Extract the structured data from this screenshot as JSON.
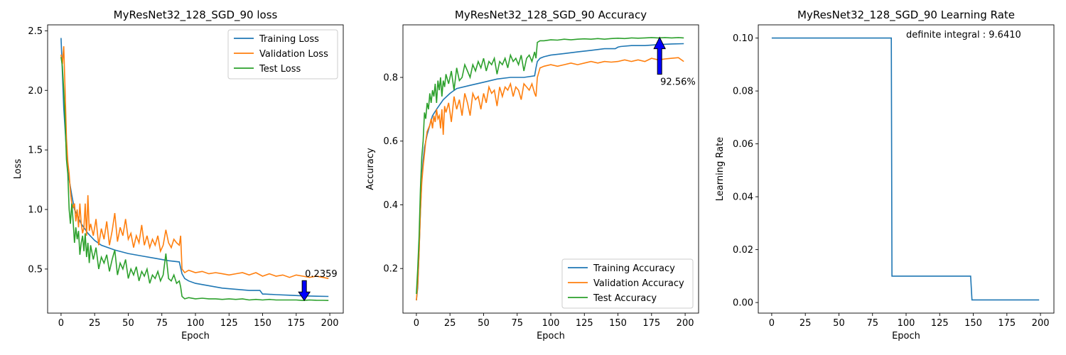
{
  "chart_data": [
    {
      "id": "loss",
      "type": "line",
      "title": "MyResNet32_128_SGD_90 loss",
      "xlabel": "Epoch",
      "ylabel": "Loss",
      "xlim": [
        -10,
        210
      ],
      "ylim": [
        0.13,
        2.55
      ],
      "xticks": [
        0,
        25,
        50,
        75,
        100,
        125,
        150,
        175,
        200
      ],
      "yticks": [
        0.5,
        1.0,
        1.5,
        2.0,
        2.5
      ],
      "ytick_labels": [
        "0.5",
        "1.0",
        "1.5",
        "2.0",
        "2.5"
      ],
      "legend": "top-right",
      "series": [
        {
          "name": "Training Loss",
          "color": "#1f77b4",
          "x": [
            0,
            2,
            5,
            8,
            10,
            15,
            20,
            25,
            30,
            40,
            50,
            60,
            70,
            80,
            88,
            90,
            92,
            95,
            100,
            110,
            120,
            130,
            140,
            148,
            150,
            152,
            160,
            170,
            180,
            190,
            199
          ],
          "y": [
            2.44,
            1.85,
            1.32,
            1.12,
            1.0,
            0.88,
            0.8,
            0.74,
            0.7,
            0.66,
            0.63,
            0.61,
            0.59,
            0.57,
            0.56,
            0.46,
            0.42,
            0.4,
            0.38,
            0.36,
            0.34,
            0.33,
            0.32,
            0.32,
            0.29,
            0.29,
            0.285,
            0.28,
            0.275,
            0.272,
            0.27
          ]
        },
        {
          "name": "Validation Loss",
          "color": "#ff7f0e",
          "x": [
            0,
            1,
            2,
            3,
            4,
            5,
            6,
            7,
            8,
            9,
            10,
            11,
            12,
            13,
            14,
            15,
            16,
            17,
            18,
            19,
            20,
            21,
            22,
            24,
            26,
            28,
            30,
            32,
            34,
            36,
            38,
            40,
            42,
            44,
            46,
            48,
            50,
            52,
            54,
            56,
            58,
            60,
            62,
            64,
            66,
            68,
            70,
            72,
            74,
            76,
            78,
            80,
            82,
            84,
            86,
            88,
            89,
            90,
            92,
            95,
            100,
            105,
            110,
            115,
            120,
            125,
            130,
            135,
            140,
            145,
            150,
            155,
            160,
            165,
            170,
            175,
            180,
            185,
            190,
            195,
            199
          ],
          "y": [
            2.3,
            2.22,
            2.37,
            2.0,
            1.6,
            1.4,
            1.3,
            1.15,
            1.05,
            1.02,
            1.05,
            0.9,
            1.0,
            0.85,
            1.05,
            0.88,
            0.8,
            0.85,
            1.05,
            0.78,
            1.12,
            0.82,
            0.88,
            0.78,
            0.92,
            0.7,
            0.84,
            0.75,
            0.9,
            0.7,
            0.82,
            0.97,
            0.73,
            0.85,
            0.78,
            0.92,
            0.75,
            0.8,
            0.68,
            0.78,
            0.72,
            0.87,
            0.7,
            0.78,
            0.68,
            0.75,
            0.7,
            0.78,
            0.65,
            0.7,
            0.83,
            0.72,
            0.68,
            0.75,
            0.72,
            0.7,
            0.78,
            0.5,
            0.47,
            0.49,
            0.47,
            0.48,
            0.46,
            0.47,
            0.46,
            0.45,
            0.46,
            0.47,
            0.45,
            0.47,
            0.44,
            0.46,
            0.44,
            0.45,
            0.43,
            0.45,
            0.44,
            0.43,
            0.44,
            0.43,
            0.42
          ]
        },
        {
          "name": "Test Loss",
          "color": "#2ca02c",
          "x": [
            0,
            1,
            2,
            3,
            4,
            5,
            6,
            7,
            8,
            9,
            10,
            11,
            12,
            13,
            14,
            15,
            16,
            17,
            18,
            19,
            20,
            21,
            22,
            24,
            26,
            28,
            30,
            32,
            34,
            36,
            38,
            40,
            42,
            44,
            46,
            48,
            50,
            52,
            54,
            56,
            58,
            60,
            62,
            64,
            66,
            68,
            70,
            72,
            74,
            76,
            78,
            80,
            82,
            84,
            86,
            88,
            89,
            90,
            92,
            95,
            100,
            105,
            110,
            115,
            120,
            125,
            130,
            135,
            140,
            145,
            150,
            155,
            160,
            165,
            170,
            175,
            180,
            185,
            190,
            195,
            199
          ],
          "y": [
            2.28,
            2.2,
            2.0,
            1.75,
            1.42,
            1.3,
            1.0,
            0.88,
            1.05,
            0.9,
            0.72,
            0.85,
            0.75,
            0.82,
            0.62,
            0.72,
            0.78,
            0.65,
            0.8,
            0.6,
            0.72,
            0.55,
            0.7,
            0.58,
            0.68,
            0.5,
            0.6,
            0.55,
            0.62,
            0.48,
            0.58,
            0.66,
            0.45,
            0.55,
            0.5,
            0.58,
            0.42,
            0.5,
            0.45,
            0.52,
            0.4,
            0.48,
            0.44,
            0.5,
            0.38,
            0.45,
            0.42,
            0.48,
            0.4,
            0.45,
            0.63,
            0.42,
            0.4,
            0.45,
            0.38,
            0.4,
            0.35,
            0.27,
            0.25,
            0.26,
            0.25,
            0.255,
            0.25,
            0.25,
            0.245,
            0.25,
            0.245,
            0.25,
            0.24,
            0.245,
            0.24,
            0.245,
            0.24,
            0.24,
            0.24,
            0.24,
            0.236,
            0.24,
            0.238,
            0.237,
            0.236
          ]
        }
      ],
      "annotations": [
        {
          "text": "0.2359",
          "x": 181,
          "y": 0.2359,
          "arrow": "down",
          "color": "#0000ff"
        }
      ]
    },
    {
      "id": "accuracy",
      "type": "line",
      "title": "MyResNet32_128_SGD_90 Accuracy",
      "xlabel": "Epoch",
      "ylabel": "Accuracy",
      "xlim": [
        -10,
        210
      ],
      "ylim": [
        0.06,
        0.965
      ],
      "xticks": [
        0,
        25,
        50,
        75,
        100,
        125,
        150,
        175,
        200
      ],
      "yticks": [
        0.2,
        0.4,
        0.6,
        0.8
      ],
      "ytick_labels": [
        "0.2",
        "0.4",
        "0.6",
        "0.8"
      ],
      "legend": "bottom-right",
      "series": [
        {
          "name": "Training Accuracy",
          "color": "#1f77b4",
          "x": [
            0,
            1,
            2,
            3,
            4,
            5,
            6,
            8,
            10,
            12,
            15,
            20,
            25,
            30,
            40,
            50,
            60,
            70,
            80,
            88,
            89,
            90,
            92,
            95,
            100,
            110,
            120,
            130,
            140,
            148,
            150,
            152,
            160,
            170,
            180,
            190,
            199
          ],
          "y": [
            0.1,
            0.14,
            0.25,
            0.38,
            0.48,
            0.54,
            0.58,
            0.62,
            0.65,
            0.68,
            0.7,
            0.73,
            0.75,
            0.765,
            0.775,
            0.785,
            0.795,
            0.8,
            0.8,
            0.805,
            0.83,
            0.85,
            0.86,
            0.865,
            0.87,
            0.875,
            0.88,
            0.885,
            0.89,
            0.89,
            0.895,
            0.897,
            0.9,
            0.9,
            0.903,
            0.905,
            0.906
          ]
        },
        {
          "name": "Validation Accuracy",
          "color": "#ff7f0e",
          "x": [
            0,
            1,
            2,
            3,
            4,
            5,
            6,
            7,
            8,
            9,
            10,
            11,
            12,
            13,
            14,
            15,
            16,
            17,
            18,
            19,
            20,
            21,
            22,
            24,
            26,
            28,
            30,
            32,
            34,
            36,
            38,
            40,
            42,
            44,
            46,
            48,
            50,
            52,
            54,
            56,
            58,
            60,
            62,
            64,
            66,
            68,
            70,
            72,
            74,
            76,
            78,
            80,
            82,
            84,
            86,
            88,
            89,
            90,
            92,
            95,
            100,
            105,
            110,
            115,
            120,
            125,
            130,
            135,
            140,
            145,
            150,
            155,
            160,
            165,
            170,
            175,
            180,
            185,
            190,
            195,
            199
          ],
          "y": [
            0.1,
            0.15,
            0.25,
            0.38,
            0.47,
            0.52,
            0.56,
            0.6,
            0.63,
            0.64,
            0.65,
            0.67,
            0.64,
            0.68,
            0.66,
            0.7,
            0.67,
            0.68,
            0.64,
            0.7,
            0.62,
            0.71,
            0.69,
            0.72,
            0.66,
            0.74,
            0.7,
            0.73,
            0.68,
            0.75,
            0.72,
            0.68,
            0.75,
            0.73,
            0.74,
            0.7,
            0.75,
            0.72,
            0.77,
            0.75,
            0.76,
            0.71,
            0.77,
            0.74,
            0.77,
            0.76,
            0.78,
            0.74,
            0.77,
            0.76,
            0.73,
            0.78,
            0.77,
            0.76,
            0.78,
            0.75,
            0.74,
            0.8,
            0.83,
            0.835,
            0.84,
            0.835,
            0.84,
            0.845,
            0.84,
            0.845,
            0.85,
            0.845,
            0.85,
            0.848,
            0.85,
            0.855,
            0.85,
            0.855,
            0.85,
            0.86,
            0.855,
            0.858,
            0.86,
            0.862,
            0.85
          ]
        },
        {
          "name": "Test Accuracy",
          "color": "#2ca02c",
          "x": [
            0,
            1,
            2,
            3,
            4,
            5,
            6,
            7,
            8,
            9,
            10,
            11,
            12,
            13,
            14,
            15,
            16,
            17,
            18,
            19,
            20,
            21,
            22,
            24,
            26,
            28,
            30,
            32,
            34,
            36,
            38,
            40,
            42,
            44,
            46,
            48,
            50,
            52,
            54,
            56,
            58,
            60,
            62,
            64,
            66,
            68,
            70,
            72,
            74,
            76,
            78,
            80,
            82,
            84,
            86,
            88,
            89,
            90,
            92,
            95,
            100,
            105,
            110,
            115,
            120,
            125,
            130,
            135,
            140,
            145,
            150,
            155,
            160,
            165,
            170,
            175,
            180,
            185,
            190,
            195,
            199
          ],
          "y": [
            0.12,
            0.2,
            0.3,
            0.45,
            0.55,
            0.6,
            0.69,
            0.67,
            0.72,
            0.7,
            0.75,
            0.72,
            0.76,
            0.74,
            0.78,
            0.72,
            0.79,
            0.76,
            0.8,
            0.74,
            0.79,
            0.77,
            0.81,
            0.78,
            0.82,
            0.76,
            0.83,
            0.79,
            0.8,
            0.84,
            0.82,
            0.8,
            0.84,
            0.82,
            0.85,
            0.83,
            0.86,
            0.82,
            0.85,
            0.84,
            0.86,
            0.81,
            0.85,
            0.84,
            0.86,
            0.83,
            0.87,
            0.85,
            0.86,
            0.84,
            0.87,
            0.82,
            0.86,
            0.87,
            0.85,
            0.88,
            0.86,
            0.91,
            0.915,
            0.915,
            0.918,
            0.917,
            0.92,
            0.918,
            0.92,
            0.921,
            0.92,
            0.922,
            0.92,
            0.922,
            0.923,
            0.922,
            0.924,
            0.923,
            0.924,
            0.925,
            0.924,
            0.925,
            0.924,
            0.925,
            0.924
          ]
        }
      ],
      "annotations": [
        {
          "text": "92.56%",
          "x": 181,
          "y": 0.9256,
          "arrow": "up",
          "color": "#0000ff"
        }
      ]
    },
    {
      "id": "lr",
      "type": "line",
      "title": "MyResNet32_128_SGD_90 Learning Rate",
      "xlabel": "Epoch",
      "ylabel": "Learning Rate",
      "xlim": [
        -10,
        210
      ],
      "ylim": [
        -0.004,
        0.105
      ],
      "xticks": [
        0,
        25,
        50,
        75,
        100,
        125,
        150,
        175,
        200
      ],
      "yticks": [
        0.0,
        0.02,
        0.04,
        0.06,
        0.08,
        0.1
      ],
      "ytick_labels": [
        "0.00",
        "0.02",
        "0.04",
        "0.06",
        "0.08",
        "0.10"
      ],
      "series": [
        {
          "color": "#1f77b4",
          "x": [
            0,
            89,
            89,
            89.5,
            148,
            148,
            149,
            199
          ],
          "y": [
            0.1,
            0.1,
            0.1,
            0.01,
            0.01,
            0.01,
            0.001,
            0.001
          ]
        }
      ],
      "text_annotation": "definite integral : 9.6410"
    }
  ]
}
